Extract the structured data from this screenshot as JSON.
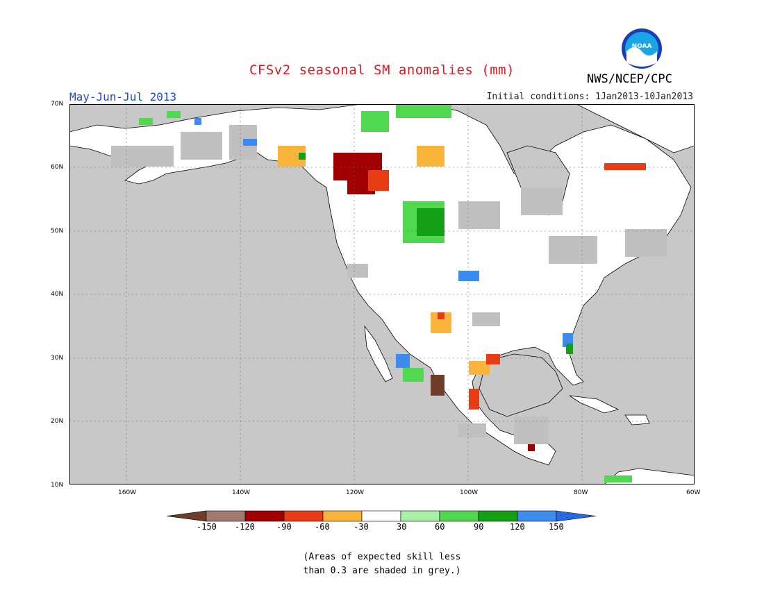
{
  "header": {
    "title": "CFSv2 seasonal SM anomalies (mm)",
    "season": "May-Jun-Jul 2013",
    "initial_conditions": "Initial conditions: 1Jan2013-10Jan2013",
    "organization": "NWS/NCEP/CPC",
    "logo_text": "NOAA"
  },
  "map": {
    "lat_labels": [
      "70N",
      "60N",
      "50N",
      "40N",
      "30N",
      "20N",
      "10N"
    ],
    "lon_labels": [
      "160W",
      "140W",
      "120W",
      "100W",
      "80W",
      "60W"
    ],
    "ocean_color": "#c8c8c8",
    "land_color": "#ffffff",
    "low_skill_color": "#c0c0c0"
  },
  "colorbar": {
    "labels": [
      "-150",
      "-120",
      "-90",
      "-60",
      "-30",
      "30",
      "60",
      "90",
      "120",
      "150"
    ],
    "colors": [
      "#6e3c28",
      "#a07a6e",
      "#a00000",
      "#e83c14",
      "#fab43c",
      "#ffffff",
      "#a8f0a8",
      "#50d850",
      "#14a014",
      "#3c8cf0",
      "#2868e0"
    ]
  },
  "footnote": {
    "line1": "(Areas of expected skill less",
    "line2": "than 0.3 are shaded in grey.)"
  }
}
